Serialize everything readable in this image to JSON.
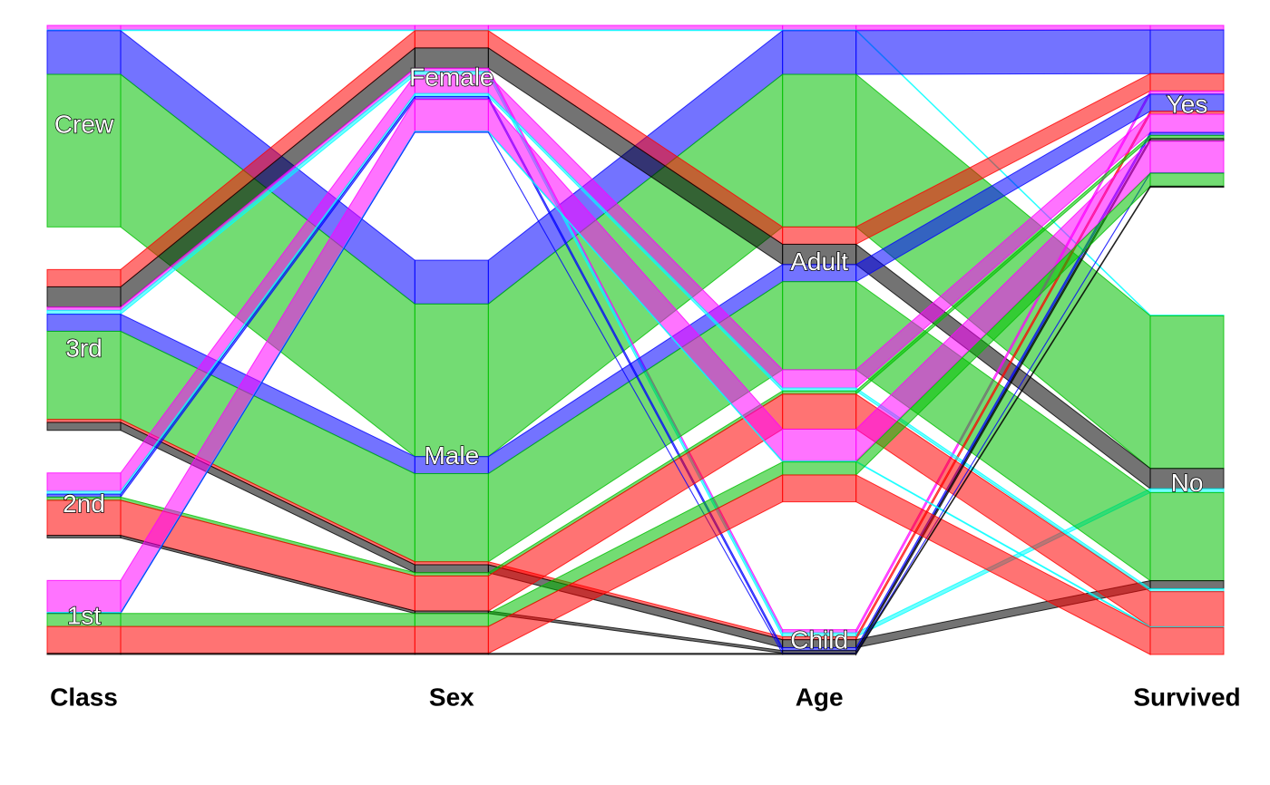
{
  "chart_data": {
    "type": "parallel-sets",
    "dimensions": [
      {
        "name": "Class",
        "categories": [
          "Crew",
          "3rd",
          "2nd",
          "1st"
        ]
      },
      {
        "name": "Sex",
        "categories": [
          "Female",
          "Male"
        ]
      },
      {
        "name": "Age",
        "categories": [
          "Adult",
          "Child"
        ]
      },
      {
        "name": "Survived",
        "categories": [
          "Yes",
          "No"
        ]
      }
    ],
    "colors": [
      "#ff00ff",
      "#00ffff",
      "#0000ff",
      "#00c000",
      "#ff0000",
      "#000000"
    ],
    "flows": [
      {
        "path": [
          "Crew",
          "Female",
          "Adult",
          "Yes"
        ],
        "count": 20
      },
      {
        "path": [
          "Crew",
          "Female",
          "Adult",
          "No"
        ],
        "count": 3
      },
      {
        "path": [
          "Crew",
          "Male",
          "Adult",
          "Yes"
        ],
        "count": 192
      },
      {
        "path": [
          "Crew",
          "Male",
          "Adult",
          "No"
        ],
        "count": 670
      },
      {
        "path": [
          "3rd",
          "Female",
          "Adult",
          "Yes"
        ],
        "count": 76
      },
      {
        "path": [
          "3rd",
          "Female",
          "Adult",
          "No"
        ],
        "count": 89
      },
      {
        "path": [
          "3rd",
          "Female",
          "Child",
          "Yes"
        ],
        "count": 14
      },
      {
        "path": [
          "3rd",
          "Female",
          "Child",
          "No"
        ],
        "count": 17
      },
      {
        "path": [
          "3rd",
          "Male",
          "Adult",
          "Yes"
        ],
        "count": 75
      },
      {
        "path": [
          "3rd",
          "Male",
          "Adult",
          "No"
        ],
        "count": 387
      },
      {
        "path": [
          "3rd",
          "Male",
          "Child",
          "Yes"
        ],
        "count": 13
      },
      {
        "path": [
          "3rd",
          "Male",
          "Child",
          "No"
        ],
        "count": 35
      },
      {
        "path": [
          "2nd",
          "Female",
          "Adult",
          "Yes"
        ],
        "count": 80
      },
      {
        "path": [
          "2nd",
          "Female",
          "Adult",
          "No"
        ],
        "count": 13
      },
      {
        "path": [
          "2nd",
          "Female",
          "Child",
          "Yes"
        ],
        "count": 13
      },
      {
        "path": [
          "2nd",
          "Male",
          "Adult",
          "Yes"
        ],
        "count": 14
      },
      {
        "path": [
          "2nd",
          "Male",
          "Adult",
          "No"
        ],
        "count": 154
      },
      {
        "path": [
          "2nd",
          "Male",
          "Child",
          "Yes"
        ],
        "count": 11
      },
      {
        "path": [
          "1st",
          "Female",
          "Adult",
          "Yes"
        ],
        "count": 140
      },
      {
        "path": [
          "1st",
          "Female",
          "Adult",
          "No"
        ],
        "count": 4
      },
      {
        "path": [
          "1st",
          "Female",
          "Child",
          "Yes"
        ],
        "count": 1
      },
      {
        "path": [
          "1st",
          "Male",
          "Adult",
          "Yes"
        ],
        "count": 57
      },
      {
        "path": [
          "1st",
          "Male",
          "Adult",
          "No"
        ],
        "count": 118
      },
      {
        "path": [
          "1st",
          "Male",
          "Child",
          "Yes"
        ],
        "count": 5
      }
    ]
  }
}
